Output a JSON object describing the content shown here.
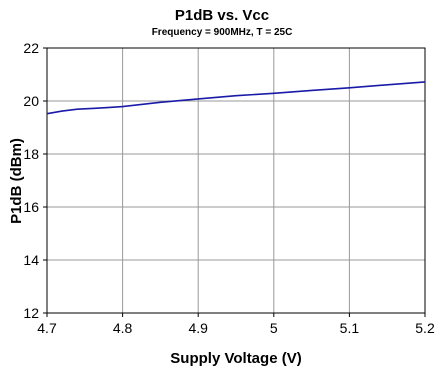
{
  "chart_data": {
    "type": "line",
    "title": "P1dB vs. Vcc",
    "subtitle": "Frequency = 900MHz, T = 25C",
    "xlabel": "Supply Voltage (V)",
    "ylabel": "P1dB (dBm)",
    "xlim": [
      4.7,
      5.2
    ],
    "ylim": [
      12,
      22
    ],
    "x_ticks": [
      "4.7",
      "4.8",
      "4.9",
      "5",
      "5.1",
      "5.2"
    ],
    "y_ticks": [
      "12",
      "14",
      "16",
      "18",
      "20",
      "22"
    ],
    "grid": true,
    "legend": "none",
    "series": [
      {
        "color": "#1a1aa8",
        "x": [
          4.7,
          4.72,
          4.74,
          4.76,
          4.78,
          4.8,
          4.85,
          4.9,
          4.95,
          5.0,
          5.05,
          5.1,
          5.15,
          5.2
        ],
        "y": [
          19.52,
          19.62,
          19.69,
          19.72,
          19.75,
          19.79,
          19.95,
          20.08,
          20.2,
          20.29,
          20.4,
          20.5,
          20.61,
          20.72
        ]
      }
    ]
  }
}
